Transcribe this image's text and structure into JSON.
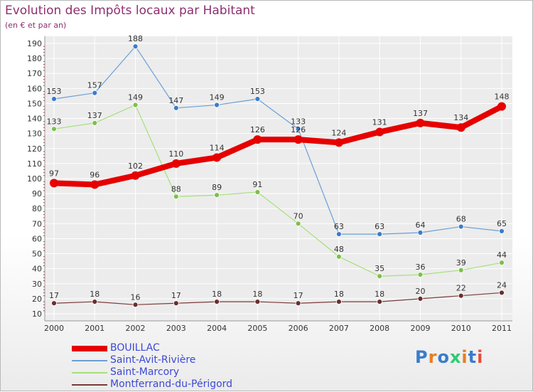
{
  "header": {
    "title": "Evolution des Impôts locaux par Habitant",
    "subtitle": "(en € et par an)"
  },
  "logo": {
    "text": "Proxiti"
  },
  "chart_data": {
    "type": "line",
    "title": "Evolution des Impôts locaux par Habitant",
    "subtitle": "(en € et par an)",
    "xlabel": "",
    "ylabel": "",
    "x": [
      "2000",
      "2001",
      "2002",
      "2003",
      "2004",
      "2005",
      "2006",
      "2007",
      "2008",
      "2009",
      "2010",
      "2011"
    ],
    "ylim": [
      10,
      190
    ],
    "yticks": [
      10,
      20,
      30,
      40,
      50,
      60,
      70,
      80,
      90,
      100,
      110,
      120,
      130,
      140,
      150,
      160,
      170,
      180,
      190
    ],
    "grid": true,
    "legend_position": "bottom-left",
    "series": [
      {
        "name": "BOUILLAC",
        "color": "#e60000",
        "values": [
          97,
          96,
          102,
          110,
          114,
          126,
          126,
          124,
          131,
          137,
          134,
          148
        ]
      },
      {
        "name": "Saint-Avit-Rivière",
        "color": "#6a9fd6",
        "values": [
          153,
          157,
          188,
          147,
          149,
          153,
          133,
          63,
          63,
          64,
          68,
          65
        ]
      },
      {
        "name": "Saint-Marcory",
        "color": "#a6e07a",
        "values": [
          133,
          137,
          149,
          88,
          89,
          91,
          70,
          48,
          35,
          36,
          39,
          44
        ]
      },
      {
        "name": "Montferrand-du-Périgord",
        "color": "#7a3b3b",
        "values": [
          17,
          18,
          16,
          17,
          18,
          18,
          17,
          18,
          18,
          20,
          22,
          24
        ]
      }
    ]
  }
}
